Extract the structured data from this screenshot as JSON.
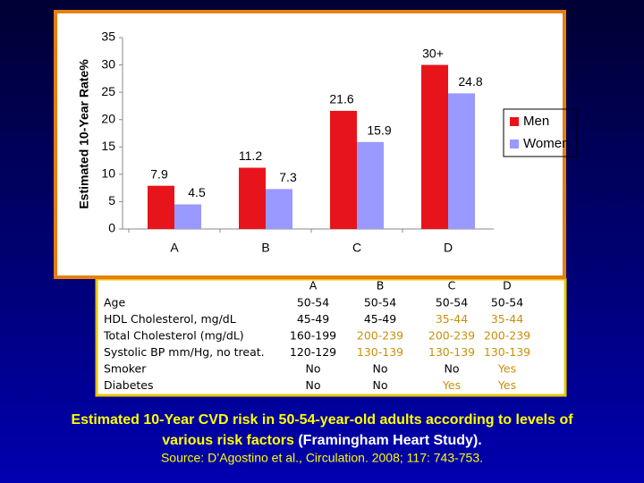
{
  "chart_data": {
    "type": "bar",
    "y_label": "Estimated 10-Year Rate%",
    "categories": [
      "A",
      "B",
      "C",
      "D"
    ],
    "series": [
      {
        "name": "Men",
        "color": "#e8141b",
        "values": [
          7.9,
          11.2,
          21.6,
          30
        ],
        "value_labels": [
          "7.9",
          "11.2",
          "21.6",
          "30+"
        ]
      },
      {
        "name": "Women",
        "color": "#9999ff",
        "values": [
          4.5,
          7.3,
          15.9,
          24.8
        ]
      }
    ],
    "ylim": [
      0,
      35
    ],
    "yticks": [
      0,
      5,
      10,
      15,
      20,
      25,
      30,
      35
    ],
    "grid": false,
    "legend": "right"
  },
  "table": {
    "columns": [
      "A",
      "B",
      "C",
      "D"
    ],
    "rows": [
      {
        "label": "Age",
        "cells": [
          "50-54",
          "50-54",
          "50-54",
          "50-54"
        ],
        "colors": [
          "#000000",
          "#000000",
          "#000000",
          "#000000"
        ]
      },
      {
        "label": "HDL Cholesterol, mg/dL",
        "cells": [
          "45-49",
          "45-49",
          "35-44",
          "35-44"
        ],
        "colors": [
          "#000000",
          "#000000",
          "#c8900a",
          "#c8900a"
        ]
      },
      {
        "label": "Total Cholesterol (mg/dL)",
        "cells": [
          "160-199",
          "200-239",
          "200-239",
          "200-239"
        ],
        "colors": [
          "#000000",
          "#c8900a",
          "#c8900a",
          "#c8900a"
        ]
      },
      {
        "label": "Systolic BP mm/Hg, no treat.",
        "cells": [
          "120-129",
          "130-139",
          "130-139",
          "130-139"
        ],
        "colors": [
          "#000000",
          "#c8900a",
          "#c8900a",
          "#c8900a"
        ]
      },
      {
        "label": "Smoker",
        "cells": [
          "No",
          "No",
          "No",
          "Yes"
        ],
        "colors": [
          "#000000",
          "#000000",
          "#000000",
          "#c8900a"
        ]
      },
      {
        "label": "Diabetes",
        "cells": [
          "No",
          "No",
          "Yes",
          "Yes"
        ],
        "colors": [
          "#000000",
          "#000000",
          "#c8900a",
          "#c8900a"
        ]
      }
    ]
  },
  "caption": {
    "line1": "Estimated 10-Year CVD risk in 50-54-year-old adults according to levels of",
    "line2_highlight": "various risk factors",
    "line2_rest": " (Framingham Heart Study)."
  },
  "source": "Source: D’Agostino et al., Circulation. 2008; 117: 743-753."
}
